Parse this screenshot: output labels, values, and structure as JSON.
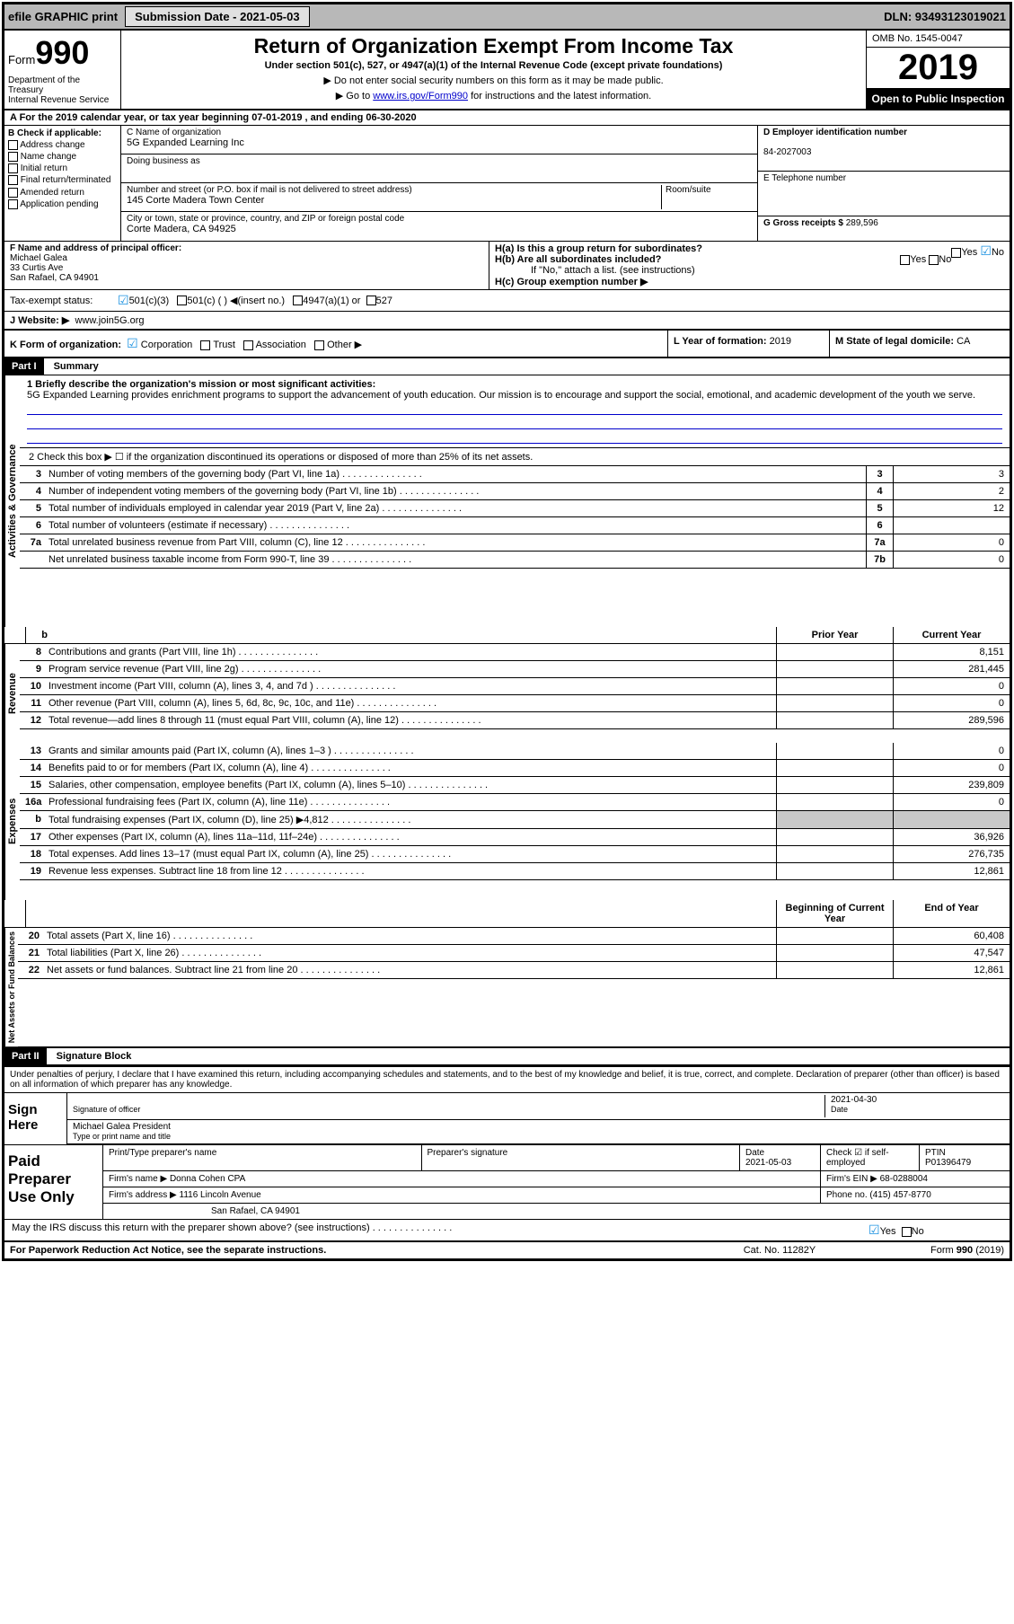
{
  "topbar": {
    "efile": "efile GRAPHIC print",
    "submission": "Submission Date - 2021-05-03",
    "dln": "DLN: 93493123019021"
  },
  "header": {
    "form_prefix": "Form",
    "form_no": "990",
    "dept": "Department of the Treasury\nInternal Revenue Service",
    "title": "Return of Organization Exempt From Income Tax",
    "subtitle": "Under section 501(c), 527, or 4947(a)(1) of the Internal Revenue Code (except private foundations)",
    "instr1": "▶ Do not enter social security numbers on this form as it may be made public.",
    "instr2_pre": "▶ Go to ",
    "instr2_link": "www.irs.gov/Form990",
    "instr2_post": " for instructions and the latest information.",
    "omb": "OMB No. 1545-0047",
    "year": "2019",
    "inspect": "Open to Public Inspection"
  },
  "row_a": "A For the 2019 calendar year, or tax year beginning 07-01-2019    , and ending 06-30-2020",
  "section_b": {
    "label": "B Check if applicable:",
    "items": [
      "Address change",
      "Name change",
      "Initial return",
      "Final return/terminated",
      "Amended return",
      "Application pending"
    ]
  },
  "section_c": {
    "name_label": "C Name of organization",
    "name": "5G Expanded Learning Inc",
    "dba_label": "Doing business as",
    "dba": "",
    "addr_label": "Number and street (or P.O. box if mail is not delivered to street address)",
    "addr": "145 Corte Madera Town Center",
    "room_label": "Room/suite",
    "city_label": "City or town, state or province, country, and ZIP or foreign postal code",
    "city": "Corte Madera, CA  94925"
  },
  "section_d": {
    "label": "D Employer identification number",
    "val": "84-2027003"
  },
  "section_e": {
    "label": "E Telephone number",
    "val": ""
  },
  "section_g": {
    "label": "G Gross receipts $",
    "val": "289,596"
  },
  "section_f": {
    "label": "F  Name and address of principal officer:",
    "name": "Michael Galea",
    "addr1": "33 Curtis Ave",
    "addr2": "San Rafael, CA  94901"
  },
  "section_h": {
    "a": "H(a)  Is this a group return for subordinates?",
    "b": "H(b)  Are all subordinates included?",
    "b_note": "If \"No,\" attach a list. (see instructions)",
    "c": "H(c)  Group exemption number ▶"
  },
  "tax_status": {
    "label": "Tax-exempt status:",
    "o1": "501(c)(3)",
    "o2": "501(c) (  ) ◀(insert no.)",
    "o3": "4947(a)(1) or",
    "o4": "527"
  },
  "site": {
    "label": "J  Website: ▶",
    "val": "www.join5G.org"
  },
  "klm": {
    "k_label": "K Form of organization:",
    "k_opts": [
      "Corporation",
      "Trust",
      "Association",
      "Other ▶"
    ],
    "l_label": "L Year of formation:",
    "l_val": "2019",
    "m_label": "M State of legal domicile:",
    "m_val": "CA"
  },
  "part1": {
    "hdr": "Part I",
    "title": "Summary"
  },
  "mission": {
    "label": "1  Briefly describe the organization's mission or most significant activities:",
    "text": "5G Expanded Learning provides enrichment programs to support the advancement of youth education. Our mission is to encourage and support the social, emotional, and academic development of the youth we serve."
  },
  "line2": "2   Check this box ▶ ☐  if the organization discontinued its operations or disposed of more than 25% of its net assets.",
  "side_tabs": {
    "gov": "Activities & Governance",
    "rev": "Revenue",
    "exp": "Expenses",
    "net": "Net Assets or Fund Balances"
  },
  "gov_lines": [
    {
      "n": "3",
      "t": "Number of voting members of the governing body (Part VI, line 1a)",
      "box": "3",
      "v": "3"
    },
    {
      "n": "4",
      "t": "Number of independent voting members of the governing body (Part VI, line 1b)",
      "box": "4",
      "v": "2"
    },
    {
      "n": "5",
      "t": "Total number of individuals employed in calendar year 2019 (Part V, line 2a)",
      "box": "5",
      "v": "12"
    },
    {
      "n": "6",
      "t": "Total number of volunteers (estimate if necessary)",
      "box": "6",
      "v": ""
    },
    {
      "n": "7a",
      "t": "Total unrelated business revenue from Part VIII, column (C), line 12",
      "box": "7a",
      "v": "0"
    },
    {
      "n": "",
      "t": "Net unrelated business taxable income from Form 990-T, line 39",
      "box": "7b",
      "v": "0"
    }
  ],
  "col_hdrs": {
    "prior": "Prior Year",
    "curr": "Current Year",
    "beg": "Beginning of Current Year",
    "end": "End of Year"
  },
  "rev_lines": [
    {
      "n": "8",
      "t": "Contributions and grants (Part VIII, line 1h)",
      "p": "",
      "c": "8,151"
    },
    {
      "n": "9",
      "t": "Program service revenue (Part VIII, line 2g)",
      "p": "",
      "c": "281,445"
    },
    {
      "n": "10",
      "t": "Investment income (Part VIII, column (A), lines 3, 4, and 7d )",
      "p": "",
      "c": "0"
    },
    {
      "n": "11",
      "t": "Other revenue (Part VIII, column (A), lines 5, 6d, 8c, 9c, 10c, and 11e)",
      "p": "",
      "c": "0"
    },
    {
      "n": "12",
      "t": "Total revenue—add lines 8 through 11 (must equal Part VIII, column (A), line 12)",
      "p": "",
      "c": "289,596"
    }
  ],
  "exp_lines": [
    {
      "n": "13",
      "t": "Grants and similar amounts paid (Part IX, column (A), lines 1–3 )",
      "p": "",
      "c": "0"
    },
    {
      "n": "14",
      "t": "Benefits paid to or for members (Part IX, column (A), line 4)",
      "p": "",
      "c": "0"
    },
    {
      "n": "15",
      "t": "Salaries, other compensation, employee benefits (Part IX, column (A), lines 5–10)",
      "p": "",
      "c": "239,809"
    },
    {
      "n": "16a",
      "t": "Professional fundraising fees (Part IX, column (A), line 11e)",
      "p": "",
      "c": "0"
    },
    {
      "n": "b",
      "t": "Total fundraising expenses (Part IX, column (D), line 25) ▶4,812",
      "p": "shaded",
      "c": "shaded"
    },
    {
      "n": "17",
      "t": "Other expenses (Part IX, column (A), lines 11a–11d, 11f–24e)",
      "p": "",
      "c": "36,926"
    },
    {
      "n": "18",
      "t": "Total expenses. Add lines 13–17 (must equal Part IX, column (A), line 25)",
      "p": "",
      "c": "276,735"
    },
    {
      "n": "19",
      "t": "Revenue less expenses. Subtract line 18 from line 12",
      "p": "",
      "c": "12,861"
    }
  ],
  "net_lines": [
    {
      "n": "20",
      "t": "Total assets (Part X, line 16)",
      "p": "",
      "c": "60,408"
    },
    {
      "n": "21",
      "t": "Total liabilities (Part X, line 26)",
      "p": "",
      "c": "47,547"
    },
    {
      "n": "22",
      "t": "Net assets or fund balances. Subtract line 21 from line 20",
      "p": "",
      "c": "12,861"
    }
  ],
  "part2": {
    "hdr": "Part II",
    "title": "Signature Block"
  },
  "sig": {
    "decl": "Under penalties of perjury, I declare that I have examined this return, including accompanying schedules and statements, and to the best of my knowledge and belief, it is true, correct, and complete. Declaration of preparer (other than officer) is based on all information of which preparer has any knowledge.",
    "sign_here": "Sign Here",
    "sig_label": "Signature of officer",
    "date_label": "Date",
    "date": "2021-04-30",
    "name": "Michael Galea  President",
    "name_label": "Type or print name and title"
  },
  "prep": {
    "label": "Paid Preparer Use Only",
    "h1": "Print/Type preparer's name",
    "h2": "Preparer's signature",
    "h3": "Date",
    "h3v": "2021-05-03",
    "h4": "Check ☑ if self-employed",
    "h5": "PTIN",
    "h5v": "P01396479",
    "firm_label": "Firm's name    ▶",
    "firm": "Donna Cohen CPA",
    "ein_label": "Firm's EIN ▶",
    "ein": "68-0288004",
    "addr_label": "Firm's address ▶",
    "addr": "1116 Lincoln Avenue",
    "addr2": "San Rafael, CA  94901",
    "phone_label": "Phone no.",
    "phone": "(415) 457-8770"
  },
  "discuss": "May the IRS discuss this return with the preparer shown above? (see instructions)",
  "footer": {
    "l": "For Paperwork Reduction Act Notice, see the separate instructions.",
    "m": "Cat. No. 11282Y",
    "r": "Form 990 (2019)"
  },
  "colors": {
    "link": "#0000cc",
    "check": "#1890e0",
    "shade": "#c8c8c8",
    "topbar": "#b8b8b8"
  }
}
